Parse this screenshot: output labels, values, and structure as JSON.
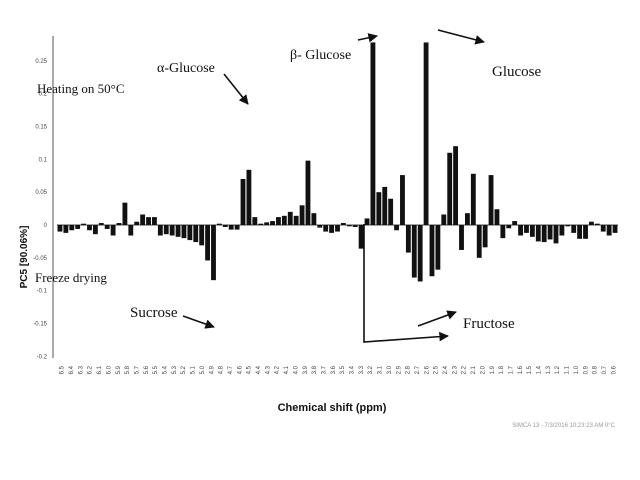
{
  "chart_data": {
    "type": "bar",
    "xlabel": "Chemical shift (ppm)",
    "ylabel": "PC5 [90.06%]",
    "ylim": [
      -0.2,
      0.3
    ],
    "yticks": [
      "0.25",
      "0.2",
      "0.15",
      "0.1",
      "0.05",
      "0",
      "-0.05",
      "-0.1",
      "-0.15",
      "-0.2"
    ],
    "grid": false,
    "values": [
      -0.01,
      -0.012,
      -0.008,
      -0.006,
      0.002,
      -0.008,
      -0.014,
      0.003,
      -0.006,
      -0.016,
      0.003,
      0.034,
      -0.016,
      0.005,
      0.016,
      0.012,
      0.012,
      -0.016,
      -0.014,
      -0.016,
      -0.018,
      -0.02,
      -0.023,
      -0.026,
      -0.031,
      -0.054,
      -0.084,
      0.002,
      -0.003,
      -0.007,
      -0.007,
      0.07,
      0.084,
      0.012,
      0.002,
      0.004,
      0.006,
      0.012,
      0.014,
      0.02,
      0.014,
      0.03,
      0.098,
      0.018,
      -0.004,
      -0.01,
      -0.012,
      -0.01,
      0.003,
      -0.002,
      -0.003,
      -0.036,
      0.01,
      0.278,
      0.05,
      0.058,
      0.04,
      -0.008,
      0.076,
      -0.042,
      -0.08,
      -0.086,
      0.278,
      -0.078,
      -0.068,
      0.016,
      0.11,
      0.12,
      -0.038,
      0.018,
      0.078,
      -0.05,
      -0.034,
      0.076,
      0.024,
      -0.02,
      -0.005,
      0.006,
      -0.016,
      -0.012,
      -0.018,
      -0.025,
      -0.026,
      -0.022,
      -0.028,
      -0.016,
      -0.002,
      -0.012,
      -0.021,
      -0.021,
      0.005,
      0.002,
      -0.01,
      -0.016,
      -0.012
    ],
    "x_tick_labels": [
      "6.5",
      "6.4",
      "6.3",
      "6.2",
      "6.1",
      "6.0",
      "5.9",
      "5.8",
      "5.7",
      "5.6",
      "5.5",
      "5.4",
      "5.3",
      "5.2",
      "5.1",
      "5.0",
      "4.9",
      "4.8",
      "4.7",
      "4.6",
      "4.5",
      "4.4",
      "4.3",
      "4.2",
      "4.1",
      "4.0",
      "3.9",
      "3.8",
      "3.7",
      "3.6",
      "3.5",
      "3.4",
      "3.3",
      "3.2",
      "3.1",
      "3.0",
      "2.9",
      "2.8",
      "2.7",
      "2.6",
      "2.5",
      "2.4",
      "2.3",
      "2.2",
      "2.1",
      "2.0",
      "1.9",
      "1.8",
      "1.7",
      "1.6",
      "1.5",
      "1.4",
      "1.3",
      "1.2",
      "1.1",
      "1.0",
      "0.9",
      "0.8",
      "0.7",
      "0.6"
    ],
    "annotations": {
      "heating": "Heating on 50°C",
      "freeze": "Freeze drying",
      "alpha_glucose": "α-Glucose",
      "beta_glucose": "β- Glucose",
      "glucose": "Glucose",
      "sucrose": "Sucrose",
      "fructose": "Fructose"
    },
    "footer": "SIMCA 13 - 7/3/2016 10:23:23 AM 0°C"
  }
}
